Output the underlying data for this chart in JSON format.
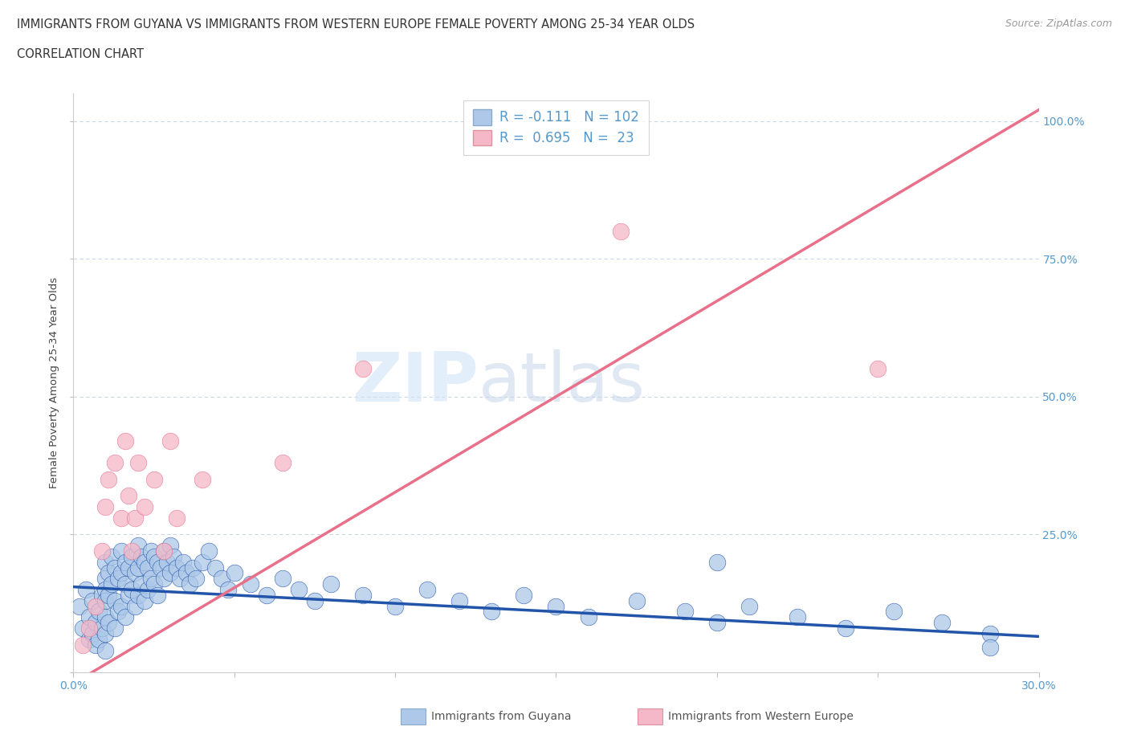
{
  "title_line1": "IMMIGRANTS FROM GUYANA VS IMMIGRANTS FROM WESTERN EUROPE FEMALE POVERTY AMONG 25-34 YEAR OLDS",
  "title_line2": "CORRELATION CHART",
  "source_text": "Source: ZipAtlas.com",
  "ylabel": "Female Poverty Among 25-34 Year Olds",
  "xlim": [
    0.0,
    0.3
  ],
  "ylim": [
    0.0,
    1.05
  ],
  "legend_labels": [
    "Immigrants from Guyana",
    "Immigrants from Western Europe"
  ],
  "legend_R": [
    "-0.111",
    "0.695"
  ],
  "legend_N": [
    "102",
    "23"
  ],
  "watermark_zip": "ZIP",
  "watermark_atlas": "atlas",
  "blue_color": "#adc8e8",
  "pink_color": "#f5b8c8",
  "blue_line_color": "#2255aa",
  "pink_line_color": "#e8708a",
  "title_color": "#333333",
  "axis_label_color": "#444444",
  "tick_color": "#5599cc",
  "grid_color": "#c8d8e8",
  "guyana_x": [
    0.002,
    0.003,
    0.004,
    0.005,
    0.005,
    0.006,
    0.006,
    0.007,
    0.007,
    0.008,
    0.008,
    0.009,
    0.009,
    0.01,
    0.01,
    0.01,
    0.01,
    0.01,
    0.01,
    0.01,
    0.011,
    0.011,
    0.011,
    0.012,
    0.012,
    0.013,
    0.013,
    0.013,
    0.014,
    0.014,
    0.015,
    0.015,
    0.015,
    0.016,
    0.016,
    0.016,
    0.017,
    0.017,
    0.018,
    0.018,
    0.019,
    0.019,
    0.02,
    0.02,
    0.02,
    0.021,
    0.021,
    0.022,
    0.022,
    0.023,
    0.023,
    0.024,
    0.024,
    0.025,
    0.025,
    0.026,
    0.026,
    0.027,
    0.028,
    0.028,
    0.029,
    0.03,
    0.03,
    0.031,
    0.032,
    0.033,
    0.034,
    0.035,
    0.036,
    0.037,
    0.038,
    0.04,
    0.042,
    0.044,
    0.046,
    0.048,
    0.05,
    0.055,
    0.06,
    0.065,
    0.07,
    0.075,
    0.08,
    0.09,
    0.1,
    0.11,
    0.12,
    0.13,
    0.14,
    0.15,
    0.16,
    0.175,
    0.19,
    0.2,
    0.21,
    0.225,
    0.24,
    0.255,
    0.27,
    0.285,
    0.2,
    0.285
  ],
  "guyana_y": [
    0.12,
    0.08,
    0.15,
    0.1,
    0.06,
    0.13,
    0.07,
    0.09,
    0.05,
    0.11,
    0.06,
    0.14,
    0.08,
    0.2,
    0.17,
    0.15,
    0.13,
    0.1,
    0.07,
    0.04,
    0.18,
    0.14,
    0.09,
    0.21,
    0.16,
    0.19,
    0.13,
    0.08,
    0.17,
    0.11,
    0.22,
    0.18,
    0.12,
    0.2,
    0.16,
    0.1,
    0.19,
    0.14,
    0.21,
    0.15,
    0.18,
    0.12,
    0.23,
    0.19,
    0.14,
    0.21,
    0.16,
    0.2,
    0.13,
    0.19,
    0.15,
    0.22,
    0.17,
    0.21,
    0.16,
    0.2,
    0.14,
    0.19,
    0.22,
    0.17,
    0.2,
    0.23,
    0.18,
    0.21,
    0.19,
    0.17,
    0.2,
    0.18,
    0.16,
    0.19,
    0.17,
    0.2,
    0.22,
    0.19,
    0.17,
    0.15,
    0.18,
    0.16,
    0.14,
    0.17,
    0.15,
    0.13,
    0.16,
    0.14,
    0.12,
    0.15,
    0.13,
    0.11,
    0.14,
    0.12,
    0.1,
    0.13,
    0.11,
    0.09,
    0.12,
    0.1,
    0.08,
    0.11,
    0.09,
    0.07,
    0.2,
    0.045
  ],
  "europe_x": [
    0.003,
    0.005,
    0.007,
    0.009,
    0.01,
    0.011,
    0.013,
    0.015,
    0.016,
    0.017,
    0.018,
    0.019,
    0.02,
    0.022,
    0.025,
    0.028,
    0.03,
    0.032,
    0.04,
    0.065,
    0.09,
    0.17,
    0.25
  ],
  "europe_y": [
    0.05,
    0.08,
    0.12,
    0.22,
    0.3,
    0.35,
    0.38,
    0.28,
    0.42,
    0.32,
    0.22,
    0.28,
    0.38,
    0.3,
    0.35,
    0.22,
    0.42,
    0.28,
    0.35,
    0.38,
    0.55,
    0.8,
    0.55
  ]
}
